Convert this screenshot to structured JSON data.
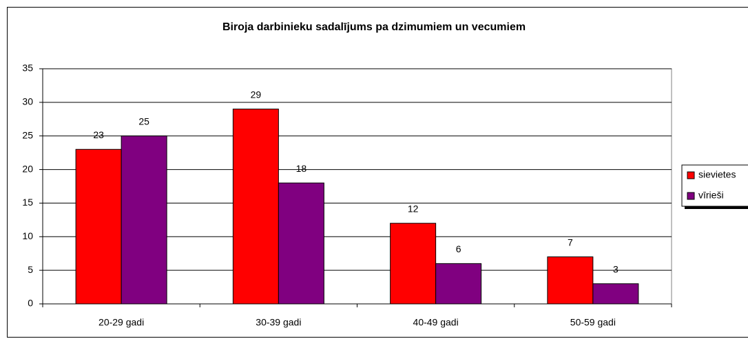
{
  "chart_data": {
    "type": "bar",
    "title": "Biroja darbinieku sadalījums pa dzimumiem un vecumiem",
    "categories": [
      "20-29 gadi",
      "30-39 gadi",
      "40-49 gadi",
      "50-59 gadi"
    ],
    "series": [
      {
        "name": "sievietes",
        "color": "#ff0000",
        "values": [
          23,
          29,
          12,
          7
        ]
      },
      {
        "name": "vīrieši",
        "color": "#800080",
        "values": [
          25,
          18,
          6,
          3
        ]
      }
    ],
    "ylim": [
      0,
      35
    ],
    "yticks": [
      0,
      5,
      10,
      15,
      20,
      25,
      30,
      35
    ],
    "grid": true,
    "legend": "right"
  }
}
